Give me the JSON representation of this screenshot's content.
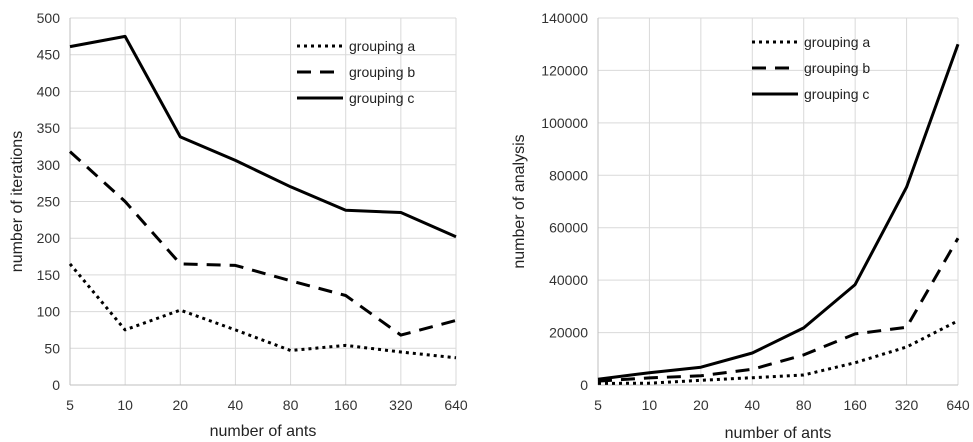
{
  "chart_data": [
    {
      "type": "line",
      "categories": [
        "5",
        "10",
        "20",
        "40",
        "80",
        "160",
        "320",
        "640"
      ],
      "xlabel": "number of ants",
      "ylabel": "number of iterations",
      "ylim": [
        0,
        500
      ],
      "yticks": [
        "0",
        "50",
        "100",
        "150",
        "200",
        "250",
        "300",
        "350",
        "400",
        "450",
        "500"
      ],
      "grid": "vertical and horizontal",
      "legend_position": "top-right",
      "series": [
        {
          "name": "grouping a",
          "style": "dotted",
          "values": [
            165,
            75,
            102,
            75,
            47,
            54,
            45,
            37
          ]
        },
        {
          "name": "grouping b",
          "style": "dashed",
          "values": [
            318,
            250,
            165,
            163,
            142,
            122,
            68,
            88
          ]
        },
        {
          "name": "grouping c",
          "style": "solid",
          "values": [
            461,
            475,
            338,
            306,
            270,
            238,
            235,
            202
          ]
        }
      ]
    },
    {
      "type": "line",
      "categories": [
        "5",
        "10",
        "20",
        "40",
        "80",
        "160",
        "320",
        "640"
      ],
      "xlabel": "number of ants",
      "ylabel": "number of analysis",
      "ylim": [
        0,
        140000
      ],
      "yticks": [
        "0",
        "20000",
        "40000",
        "60000",
        "80000",
        "100000",
        "120000",
        "140000"
      ],
      "grid": "vertical and horizontal",
      "legend_position": "top-center",
      "series": [
        {
          "name": "grouping a",
          "style": "dotted",
          "values": [
            600,
            700,
            1800,
            2800,
            3800,
            8500,
            14500,
            24500
          ]
        },
        {
          "name": "grouping b",
          "style": "dashed",
          "values": [
            1500,
            2700,
            3500,
            6000,
            11500,
            19500,
            22000,
            56000
          ]
        },
        {
          "name": "grouping c",
          "style": "solid",
          "values": [
            2200,
            4700,
            6800,
            12200,
            21800,
            38300,
            75500,
            130000
          ]
        }
      ]
    }
  ]
}
